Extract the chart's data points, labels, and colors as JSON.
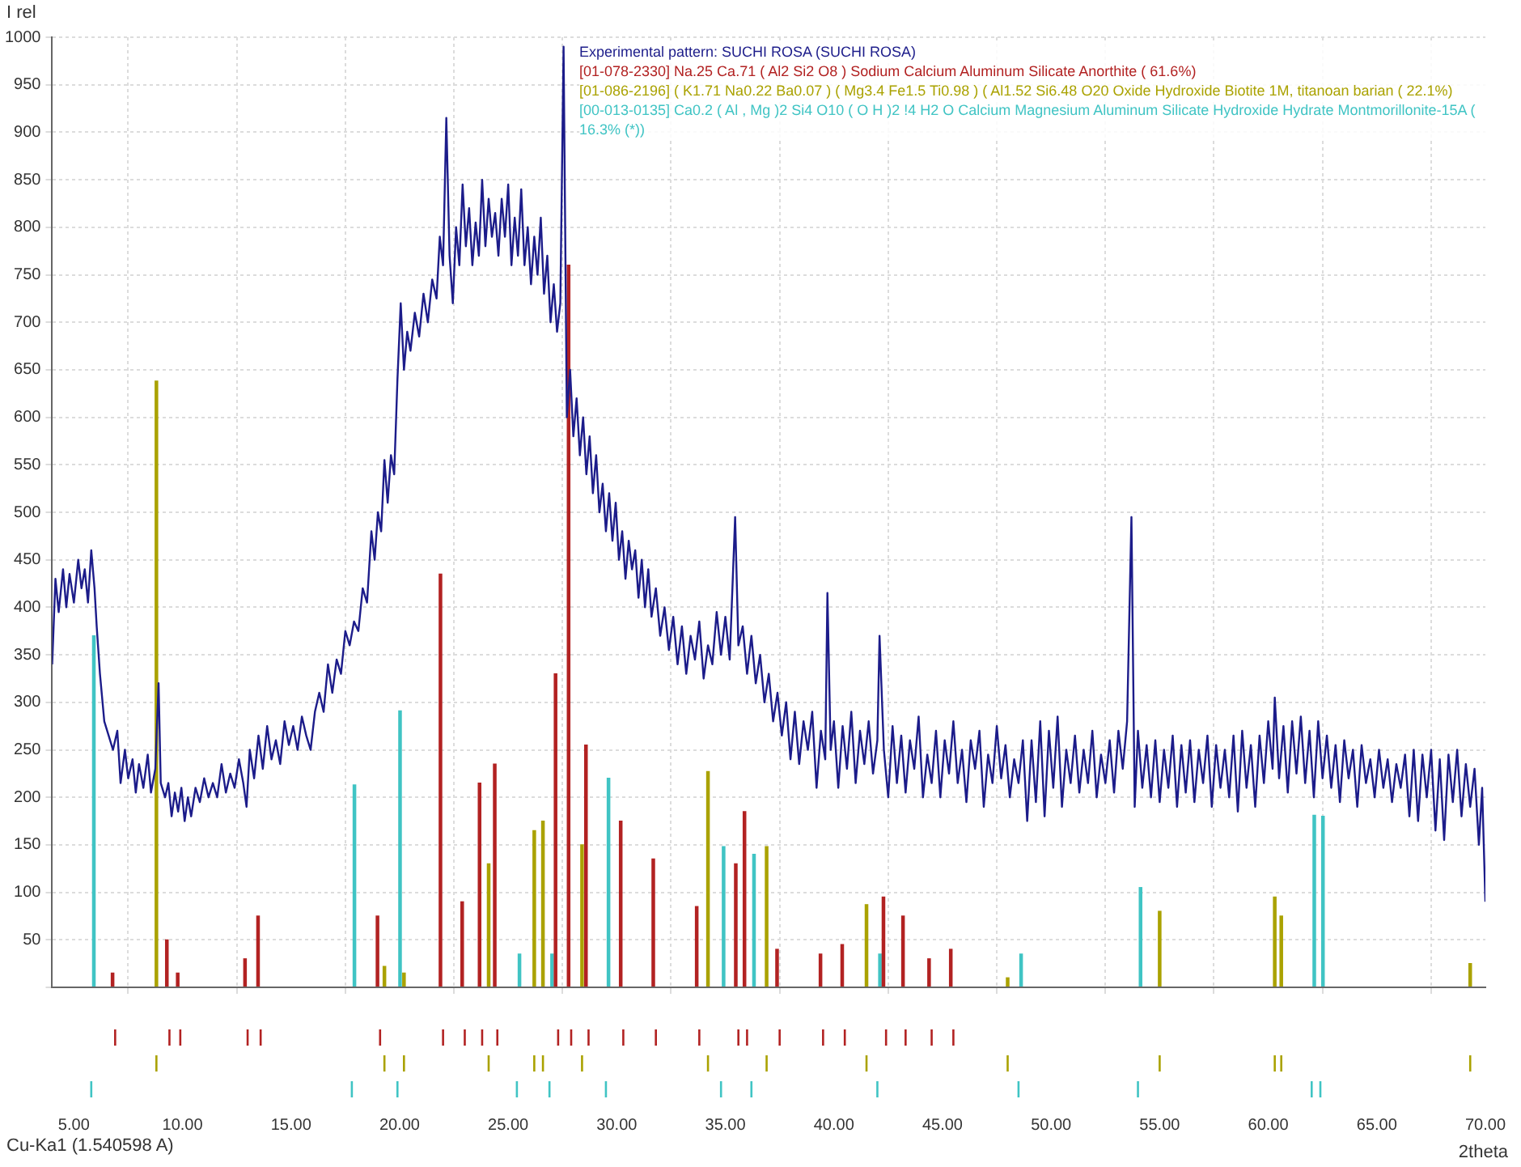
{
  "chart_data": {
    "type": "line",
    "ylabel": "I rel",
    "xlabel": "2theta",
    "annotations": [
      "Cu-Ka1 (1.540598 A)"
    ],
    "xlim": [
      4,
      70
    ],
    "ylim": [
      0,
      1000
    ],
    "xticks": [
      {
        "value": 5,
        "label": "5.00"
      },
      {
        "value": 10,
        "label": "10.00"
      },
      {
        "value": 15,
        "label": "15.00"
      },
      {
        "value": 20,
        "label": "20.00"
      },
      {
        "value": 25,
        "label": "25.00"
      },
      {
        "value": 30,
        "label": "30.00"
      },
      {
        "value": 35,
        "label": "35.00"
      },
      {
        "value": 40,
        "label": "40.00"
      },
      {
        "value": 45,
        "label": "45.00"
      },
      {
        "value": 50,
        "label": "50.00"
      },
      {
        "value": 55,
        "label": "55.00"
      },
      {
        "value": 60,
        "label": "60.00"
      },
      {
        "value": 65,
        "label": "65.00"
      },
      {
        "value": 70,
        "label": "70.00"
      }
    ],
    "yticks": [
      {
        "value": 0,
        "label": null
      },
      50,
      100,
      150,
      200,
      250,
      300,
      350,
      400,
      450,
      500,
      550,
      600,
      650,
      700,
      750,
      800,
      850,
      900,
      950,
      1000
    ],
    "grid": true,
    "legend": "top",
    "marker": "none",
    "line_style": "solid",
    "series": [
      {
        "name": "Experimental pattern: SUCHI ROSA (SUCHI ROSA)",
        "color": "#1c1c8a",
        "x": [
          4.0,
          4.15,
          4.3,
          4.5,
          4.65,
          4.8,
          5.0,
          5.2,
          5.35,
          5.5,
          5.65,
          5.8,
          5.95,
          6.05,
          6.2,
          6.4,
          6.6,
          6.8,
          7.0,
          7.15,
          7.35,
          7.5,
          7.7,
          7.85,
          8.0,
          8.2,
          8.4,
          8.55,
          8.75,
          8.9,
          9.0,
          9.2,
          9.35,
          9.5,
          9.65,
          9.8,
          9.95,
          10.1,
          10.25,
          10.4,
          10.6,
          10.8,
          11.0,
          11.2,
          11.4,
          11.6,
          11.8,
          12.0,
          12.2,
          12.4,
          12.6,
          12.8,
          12.95,
          13.1,
          13.3,
          13.5,
          13.7,
          13.9,
          14.1,
          14.3,
          14.5,
          14.7,
          14.9,
          15.1,
          15.3,
          15.5,
          15.7,
          15.9,
          16.1,
          16.3,
          16.5,
          16.7,
          16.9,
          17.1,
          17.3,
          17.5,
          17.7,
          17.9,
          18.1,
          18.3,
          18.5,
          18.7,
          18.85,
          19.0,
          19.15,
          19.3,
          19.45,
          19.6,
          19.75,
          19.9,
          20.05,
          20.2,
          20.35,
          20.5,
          20.7,
          20.9,
          21.1,
          21.3,
          21.5,
          21.7,
          21.85,
          22.0,
          22.15,
          22.3,
          22.45,
          22.6,
          22.75,
          22.9,
          23.05,
          23.2,
          23.35,
          23.5,
          23.65,
          23.8,
          23.95,
          24.1,
          24.25,
          24.4,
          24.55,
          24.7,
          24.85,
          25.0,
          25.15,
          25.3,
          25.45,
          25.6,
          25.75,
          25.9,
          26.05,
          26.2,
          26.35,
          26.5,
          26.65,
          26.8,
          26.95,
          27.1,
          27.25,
          27.4,
          27.55,
          27.7,
          27.85,
          28.0,
          28.15,
          28.3,
          28.45,
          28.6,
          28.75,
          28.9,
          29.05,
          29.2,
          29.35,
          29.5,
          29.65,
          29.8,
          29.95,
          30.1,
          30.25,
          30.4,
          30.55,
          30.7,
          30.85,
          31.0,
          31.15,
          31.3,
          31.45,
          31.6,
          31.8,
          32.0,
          32.2,
          32.4,
          32.6,
          32.8,
          33.0,
          33.2,
          33.4,
          33.6,
          33.8,
          34.0,
          34.2,
          34.4,
          34.6,
          34.8,
          35.0,
          35.2,
          35.45,
          35.6,
          35.8,
          36.0,
          36.2,
          36.4,
          36.6,
          36.8,
          37.0,
          37.2,
          37.4,
          37.6,
          37.8,
          38.0,
          38.2,
          38.4,
          38.6,
          38.8,
          39.0,
          39.2,
          39.4,
          39.6,
          39.7,
          39.85,
          40.0,
          40.2,
          40.4,
          40.6,
          40.8,
          41.0,
          41.2,
          41.4,
          41.6,
          41.8,
          42.0,
          42.1,
          42.3,
          42.5,
          42.7,
          42.9,
          43.1,
          43.3,
          43.5,
          43.7,
          43.9,
          44.1,
          44.3,
          44.5,
          44.7,
          44.9,
          45.1,
          45.3,
          45.5,
          45.7,
          45.9,
          46.1,
          46.3,
          46.5,
          46.7,
          46.9,
          47.1,
          47.3,
          47.5,
          47.7,
          47.9,
          48.1,
          48.3,
          48.5,
          48.7,
          48.9,
          49.1,
          49.3,
          49.5,
          49.7,
          49.9,
          50.1,
          50.3,
          50.5,
          50.7,
          50.9,
          51.1,
          51.3,
          51.5,
          51.7,
          51.9,
          52.1,
          52.3,
          52.5,
          52.7,
          52.9,
          53.1,
          53.3,
          53.5,
          53.7,
          53.85,
          54.0,
          54.2,
          54.4,
          54.6,
          54.8,
          55.0,
          55.2,
          55.4,
          55.6,
          55.8,
          56.0,
          56.2,
          56.4,
          56.6,
          56.8,
          57.0,
          57.2,
          57.4,
          57.6,
          57.8,
          58.0,
          58.2,
          58.4,
          58.6,
          58.8,
          59.0,
          59.2,
          59.4,
          59.6,
          59.8,
          60.0,
          60.2,
          60.3,
          60.5,
          60.7,
          60.9,
          61.1,
          61.3,
          61.5,
          61.7,
          61.9,
          62.1,
          62.3,
          62.5,
          62.7,
          62.9,
          63.1,
          63.3,
          63.5,
          63.7,
          63.9,
          64.1,
          64.3,
          64.5,
          64.7,
          64.9,
          65.1,
          65.3,
          65.5,
          65.7,
          65.9,
          66.1,
          66.3,
          66.5,
          66.7,
          66.9,
          67.1,
          67.3,
          67.5,
          67.7,
          67.9,
          68.1,
          68.3,
          68.5,
          68.7,
          68.9,
          69.1,
          69.3,
          69.5,
          69.7,
          69.85,
          70.0
        ],
        "values": [
          340,
          430,
          395,
          440,
          400,
          435,
          405,
          450,
          420,
          440,
          405,
          460,
          420,
          380,
          330,
          280,
          265,
          250,
          270,
          215,
          250,
          220,
          240,
          205,
          235,
          210,
          245,
          205,
          230,
          320,
          215,
          200,
          215,
          180,
          205,
          185,
          210,
          175,
          200,
          180,
          210,
          195,
          220,
          200,
          215,
          200,
          235,
          205,
          225,
          210,
          240,
          215,
          190,
          250,
          220,
          265,
          230,
          275,
          240,
          260,
          235,
          280,
          255,
          275,
          250,
          285,
          265,
          250,
          290,
          310,
          290,
          340,
          310,
          345,
          330,
          375,
          360,
          385,
          375,
          420,
          405,
          480,
          450,
          500,
          480,
          555,
          510,
          560,
          540,
          640,
          720,
          650,
          690,
          670,
          710,
          685,
          730,
          700,
          745,
          725,
          790,
          760,
          915,
          770,
          720,
          800,
          760,
          845,
          780,
          820,
          760,
          805,
          770,
          850,
          780,
          830,
          790,
          815,
          770,
          830,
          790,
          845,
          760,
          810,
          770,
          840,
          760,
          800,
          740,
          790,
          750,
          810,
          730,
          770,
          700,
          740,
          690,
          720,
          990,
          600,
          650,
          580,
          620,
          560,
          600,
          540,
          580,
          520,
          560,
          500,
          530,
          480,
          520,
          470,
          510,
          450,
          480,
          430,
          470,
          440,
          460,
          410,
          450,
          400,
          440,
          390,
          420,
          370,
          400,
          355,
          390,
          340,
          380,
          330,
          370,
          345,
          385,
          325,
          360,
          340,
          395,
          350,
          390,
          345,
          495,
          360,
          380,
          330,
          370,
          320,
          350,
          300,
          330,
          280,
          310,
          265,
          300,
          240,
          290,
          235,
          280,
          250,
          290,
          210,
          270,
          240,
          415,
          250,
          280,
          210,
          275,
          230,
          290,
          215,
          270,
          235,
          280,
          225,
          260,
          370,
          250,
          200,
          275,
          215,
          265,
          205,
          260,
          230,
          285,
          200,
          245,
          215,
          270,
          200,
          260,
          225,
          280,
          215,
          250,
          195,
          260,
          230,
          270,
          190,
          245,
          215,
          275,
          220,
          255,
          200,
          240,
          215,
          260,
          175,
          260,
          195,
          280,
          180,
          270,
          210,
          285,
          190,
          250,
          215,
          265,
          205,
          250,
          215,
          270,
          200,
          245,
          215,
          260,
          205,
          270,
          230,
          280,
          495,
          190,
          270,
          210,
          255,
          200,
          260,
          195,
          250,
          210,
          265,
          190,
          255,
          205,
          260,
          195,
          250,
          215,
          265,
          190,
          255,
          210,
          250,
          200,
          265,
          185,
          270,
          210,
          255,
          190,
          265,
          215,
          280,
          230,
          305,
          220,
          275,
          205,
          280,
          225,
          285,
          215,
          270,
          200,
          280,
          220,
          265,
          210,
          255,
          195,
          260,
          220,
          250,
          190,
          255,
          215,
          240,
          200,
          250,
          210,
          240,
          195,
          235,
          210,
          245,
          180,
          250,
          175,
          245,
          200,
          250,
          165,
          240,
          155,
          245,
          195,
          250,
          180,
          235,
          190,
          230,
          150,
          210,
          90
        ]
      },
      {
        "name": "[01-078-2330] Na.25 Ca.71 ( Al2 Si2 O8 ) Sodium Calcium Aluminum Silicate Anorthite ( 61.6%)",
        "type": "bar",
        "color": "#b22222",
        "x": [
          6.9,
          9.4,
          9.9,
          13.0,
          13.6,
          19.1,
          22.0,
          23.0,
          23.8,
          24.5,
          27.3,
          27.9,
          28.7,
          30.3,
          31.8,
          33.8,
          35.6,
          36.0,
          37.5,
          39.5,
          40.5,
          42.4,
          43.3,
          44.5,
          45.5
        ],
        "values": [
          15,
          50,
          15,
          30,
          75,
          75,
          435,
          90,
          215,
          235,
          330,
          760,
          255,
          175,
          135,
          85,
          130,
          185,
          40,
          35,
          45,
          95,
          75,
          30,
          40
        ]
      },
      {
        "name": "[01-086-2196] ( K1.71 Na0.22 Ba0.07 ) ( Mg3.4 Fe1.5 Ti0.98 ) ( Al1.52 Si6.48 O20 Oxide Hydroxide Biotite 1M, titanoan barian ( 22.1%)",
        "type": "bar",
        "color": "#aaa200",
        "x": [
          8.8,
          19.3,
          20.2,
          24.1,
          26.2,
          26.6,
          28.4,
          34.2,
          36.9,
          41.5,
          48.0,
          55.0,
          60.3,
          60.6,
          69.3
        ],
        "values": [
          638,
          22,
          15,
          130,
          165,
          175,
          150,
          227,
          148,
          87,
          10,
          80,
          95,
          75,
          25
        ]
      },
      {
        "name": "[00-013-0135] Ca0.2 ( Al , Mg )2 Si4 O10 ( O H )2 !4 H2 O Calcium Magnesium Aluminum Silicate Hydroxide Hydrate Montmorillonite-15A ( 16.3% (*))",
        "type": "bar",
        "color": "#40c4c4",
        "x": [
          5.8,
          17.8,
          19.9,
          25.4,
          26.9,
          29.5,
          34.8,
          36.2,
          42.0,
          48.5,
          54.0,
          62.0,
          62.4
        ],
        "values": [
          370,
          213,
          291,
          35,
          35,
          220,
          148,
          140,
          35,
          35,
          105,
          181,
          180
        ]
      }
    ]
  }
}
